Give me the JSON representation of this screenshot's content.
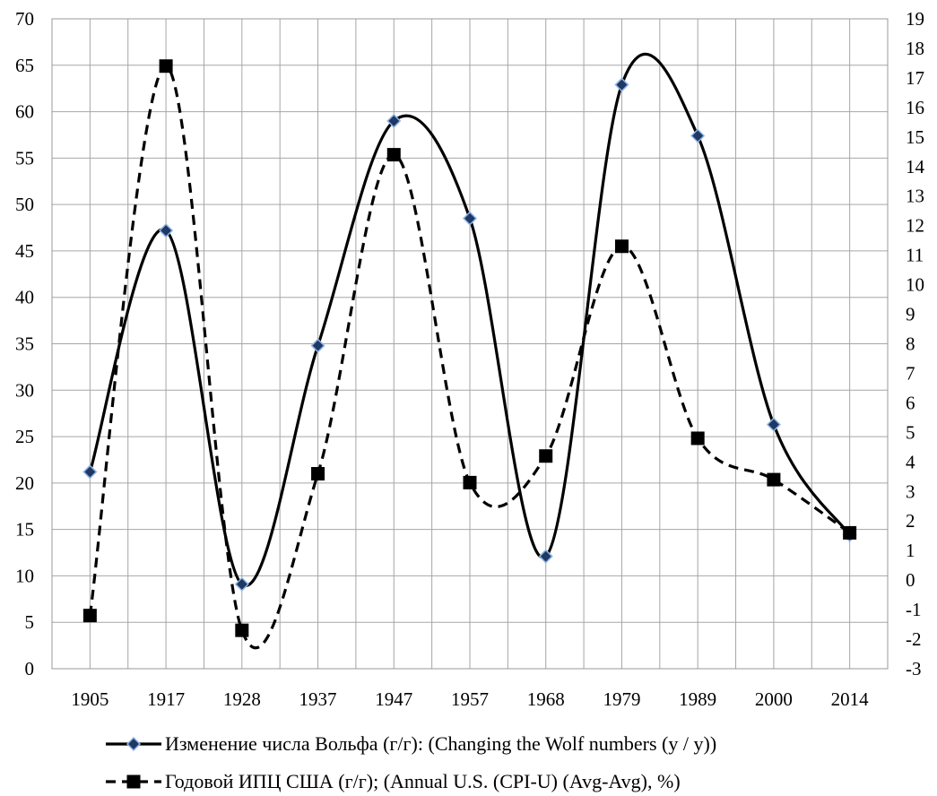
{
  "chart_data": {
    "type": "line",
    "title": "",
    "xlabel": "",
    "ylabel": "",
    "categories": [
      "1905",
      "1917",
      "1928",
      "1937",
      "1947",
      "1957",
      "1968",
      "1979",
      "1989",
      "2000",
      "2014"
    ],
    "y_left": {
      "lim": [
        0,
        70
      ],
      "ticks": [
        "0",
        "5",
        "10",
        "15",
        "20",
        "25",
        "30",
        "35",
        "40",
        "45",
        "50",
        "55",
        "60",
        "65",
        "70"
      ]
    },
    "y_right": {
      "lim": [
        -3,
        19
      ],
      "ticks": [
        "-3",
        "-2",
        "-1",
        "0",
        "1",
        "2",
        "3",
        "4",
        "5",
        "6",
        "7",
        "8",
        "9",
        "10",
        "11",
        "12",
        "13",
        "14",
        "15",
        "16",
        "17",
        "18",
        "19"
      ]
    },
    "grid": true,
    "legend_position": "bottom",
    "series": [
      {
        "name": "Изменение числа Вольфа (г/г): (Changing the Wolf numbers (y / y))",
        "axis": "left",
        "line_style": "solid",
        "marker": "diamond",
        "color": "#000000",
        "marker_fill": "#1f3864",
        "marker_stroke": "#8eb4e3",
        "values": [
          21.2,
          47.2,
          9.1,
          34.8,
          59.0,
          48.5,
          12.1,
          62.9,
          57.4,
          26.3,
          14.4
        ]
      },
      {
        "name": "Годовой ИПЦ США (г/г); (Annual U.S. (CPI-U) (Avg-Avg), %)",
        "axis": "right",
        "line_style": "dashed",
        "marker": "square",
        "color": "#000000",
        "values": [
          -1.2,
          17.4,
          -1.7,
          3.6,
          14.4,
          3.3,
          4.2,
          11.3,
          4.8,
          3.4,
          1.6
        ]
      }
    ]
  }
}
